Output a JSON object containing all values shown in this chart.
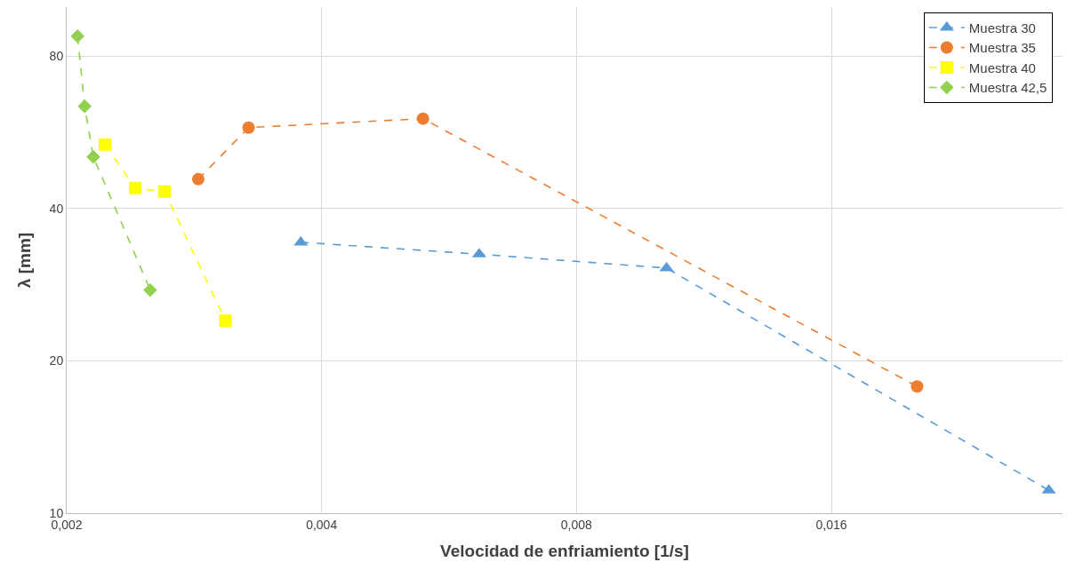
{
  "chart_data": {
    "type": "line",
    "xlabel": "Velocidad de enfriamiento [1/s]",
    "ylabel": "λ [mm]",
    "log": "xy",
    "xlim": [
      0.002,
      0.03
    ],
    "ylim": [
      10,
      100
    ],
    "xticks": [
      {
        "value": 0.002,
        "label": "0,002"
      },
      {
        "value": 0.004,
        "label": "0,004"
      },
      {
        "value": 0.008,
        "label": "0,008"
      },
      {
        "value": 0.016,
        "label": "0,016"
      }
    ],
    "yticks": [
      10,
      20,
      40,
      80
    ],
    "grid": true,
    "legend": "top right",
    "line_style": "dashed",
    "series": [
      {
        "name": "Muestra 30",
        "color": "#5b9bd5",
        "marker": "triangle",
        "x": [
          0.00378,
          0.00614,
          0.01022,
          0.0289
        ],
        "values": [
          34.3,
          32.5,
          30.5,
          11.1
        ]
      },
      {
        "name": "Muestra 35",
        "color": "#ed7d31",
        "marker": "circle",
        "x": [
          0.00286,
          0.00328,
          0.00527,
          0.0202
        ],
        "values": [
          45.7,
          57.8,
          60.2,
          17.8
        ]
      },
      {
        "name": "Muestra 40",
        "color": "#ffff00",
        "marker": "square",
        "x": [
          0.00222,
          0.00241,
          0.00261,
          0.00308
        ],
        "values": [
          53.5,
          43.9,
          43.2,
          24.0
        ]
      },
      {
        "name": "Muestra 42,5",
        "color": "#92d050",
        "marker": "diamond",
        "x": [
          0.00206,
          0.0021,
          0.00215,
          0.00251
        ],
        "values": [
          87.6,
          63.7,
          50.6,
          27.6
        ]
      }
    ]
  }
}
